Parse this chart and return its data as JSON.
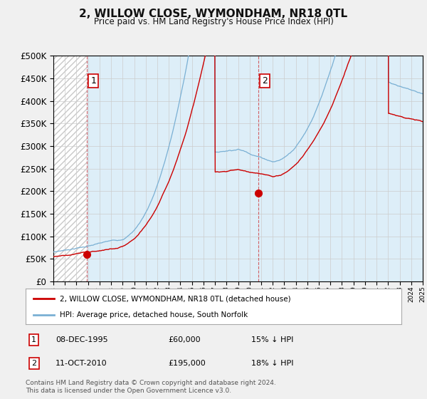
{
  "title": "2, WILLOW CLOSE, WYMONDHAM, NR18 0TL",
  "subtitle": "Price paid vs. HM Land Registry's House Price Index (HPI)",
  "legend_label_red": "2, WILLOW CLOSE, WYMONDHAM, NR18 0TL (detached house)",
  "legend_label_blue": "HPI: Average price, detached house, South Norfolk",
  "purchase1_label": "1",
  "purchase1_date": "08-DEC-1995",
  "purchase1_price": "£60,000",
  "purchase1_hpi": "15% ↓ HPI",
  "purchase2_label": "2",
  "purchase2_date": "11-OCT-2010",
  "purchase2_price": "£195,000",
  "purchase2_hpi": "18% ↓ HPI",
  "footer": "Contains HM Land Registry data © Crown copyright and database right 2024.\nThis data is licensed under the Open Government Licence v3.0.",
  "red_color": "#cc0000",
  "blue_color": "#7ab0d4",
  "bg_color": "#f0f0f0",
  "plot_bg": "#ffffff",
  "hatch_bg": "#e8e8e8",
  "blue_fill": "#ddeeff",
  "grid_color": "#cccccc",
  "purchase1_year": 1995.92,
  "purchase2_year": 2010.78,
  "purchase1_value": 60000,
  "purchase2_value": 195000,
  "xmin": 1993,
  "xmax": 2025,
  "ymin": 0,
  "ymax": 500000
}
